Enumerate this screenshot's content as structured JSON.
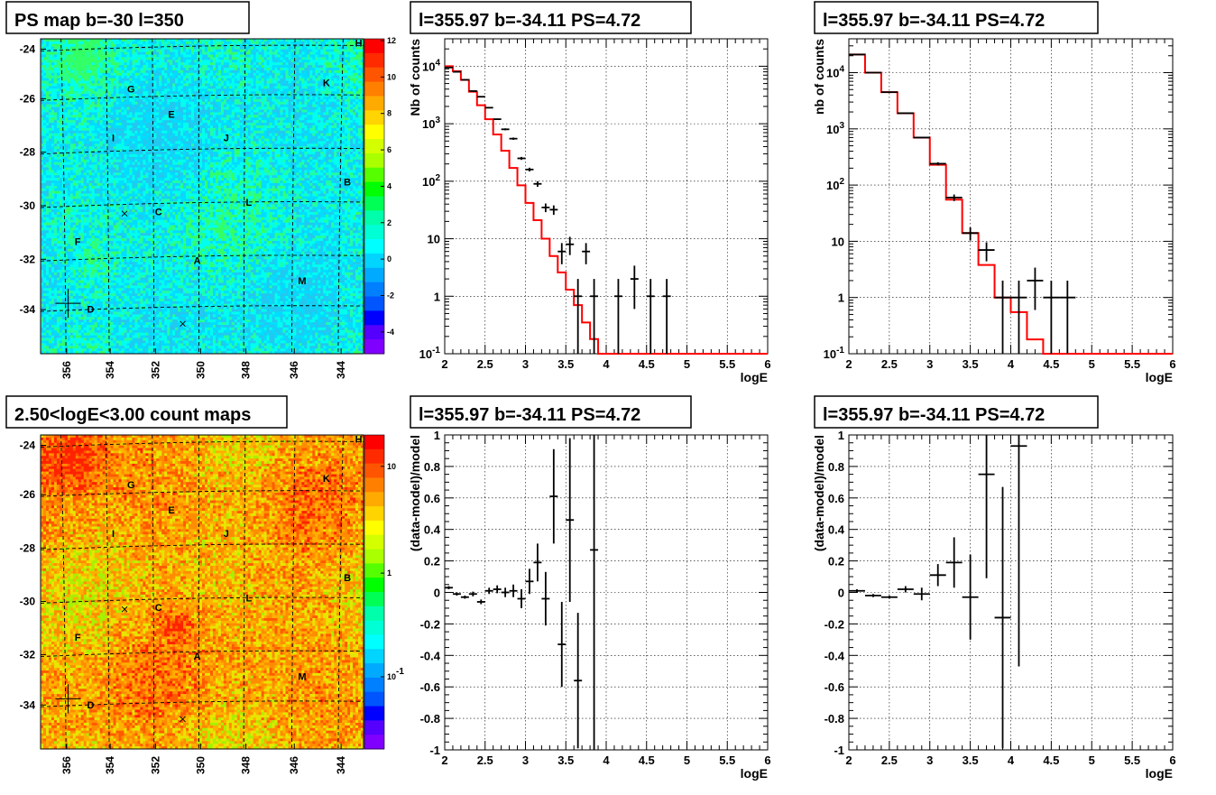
{
  "colors": {
    "hist_model": "#ff0000",
    "data_points": "#000000",
    "grid": "#000000"
  },
  "chart_data": [
    {
      "type": "heatmap",
      "title": "PS map b=-30 l=350",
      "xticks": [
        "356",
        "354",
        "352",
        "350",
        "348",
        "346",
        "344"
      ],
      "yticks": [
        "-24",
        "-26",
        "-28",
        "-30",
        "-32",
        "-34"
      ],
      "zticks": [
        "12",
        "10",
        "8",
        "6",
        "4",
        "2",
        "0",
        "-2",
        "-4"
      ],
      "zrange": [
        -5,
        12
      ],
      "zscale": "linear",
      "labels": [
        "A",
        "B",
        "C",
        "D",
        "E",
        "F",
        "G",
        "H",
        "I",
        "J",
        "K",
        "L",
        "M"
      ],
      "colormap": "rainbow",
      "dominant_color": "cyan"
    },
    {
      "type": "line",
      "title": "l=355.97 b=-34.11 PS=4.72",
      "xlabel": "logE",
      "ylabel": "Nb of counts",
      "xlim": [
        2,
        6
      ],
      "ylim": [
        0.1,
        30000
      ],
      "yscale": "log",
      "xticks": [
        "2",
        "2.5",
        "3",
        "3.5",
        "4",
        "4.5",
        "5",
        "5.5",
        "6"
      ],
      "yticks": [
        "10^4",
        "10^3",
        "10^2",
        "10",
        "1",
        "10^-1"
      ],
      "grid": true,
      "model_bin_width": 0.1,
      "model": [
        10000,
        8200,
        5800,
        3600,
        2100,
        1200,
        650,
        340,
        170,
        85,
        42,
        21,
        10,
        5,
        2.6,
        1.3,
        0.7,
        0.35,
        0.18,
        0.1,
        0.1
      ],
      "data": [
        {
          "x": 2.05,
          "y": 9500,
          "yerr": [
            9400,
            9600
          ]
        },
        {
          "x": 2.15,
          "y": 8000,
          "yerr": [
            7900,
            8100
          ]
        },
        {
          "x": 2.25,
          "y": 5800,
          "yerr": [
            5700,
            5900
          ]
        },
        {
          "x": 2.35,
          "y": 3700,
          "yerr": [
            3640,
            3760
          ]
        },
        {
          "x": 2.45,
          "y": 2950,
          "yerr": [
            2890,
            3010
          ]
        },
        {
          "x": 2.55,
          "y": 1900,
          "yerr": [
            1860,
            1940
          ]
        },
        {
          "x": 2.65,
          "y": 1200,
          "yerr": [
            1170,
            1230
          ]
        },
        {
          "x": 2.75,
          "y": 800,
          "yerr": [
            770,
            830
          ]
        },
        {
          "x": 2.85,
          "y": 550,
          "yerr": [
            525,
            575
          ]
        },
        {
          "x": 2.95,
          "y": 250,
          "yerr": [
            235,
            265
          ]
        },
        {
          "x": 3.05,
          "y": 160,
          "yerr": [
            148,
            172
          ]
        },
        {
          "x": 3.15,
          "y": 90,
          "yerr": [
            80,
            100
          ]
        },
        {
          "x": 3.25,
          "y": 35,
          "yerr": [
            29,
            41
          ]
        },
        {
          "x": 3.35,
          "y": 32,
          "yerr": [
            26,
            38
          ]
        },
        {
          "x": 3.45,
          "y": 6,
          "yerr": [
            3.6,
            8.4
          ]
        },
        {
          "x": 3.55,
          "y": 8,
          "yerr": [
            5.2,
            10.8
          ]
        },
        {
          "x": 3.65,
          "y": 1,
          "yerr": [
            0.1,
            2
          ]
        },
        {
          "x": 3.75,
          "y": 6,
          "yerr": [
            3.6,
            8.4
          ]
        },
        {
          "x": 3.85,
          "y": 1,
          "yerr": [
            0.1,
            2
          ]
        },
        {
          "x": 4.15,
          "y": 1,
          "yerr": [
            0.1,
            2
          ]
        },
        {
          "x": 4.35,
          "y": 2,
          "yerr": [
            0.6,
            3.4
          ]
        },
        {
          "x": 4.55,
          "y": 1,
          "yerr": [
            0.1,
            2
          ]
        },
        {
          "x": 4.75,
          "y": 1,
          "yerr": [
            0.1,
            2
          ]
        }
      ]
    },
    {
      "type": "line",
      "title": "l=355.97 b=-34.11 PS=4.72",
      "xlabel": "logE",
      "ylabel": "nb of counts",
      "xlim": [
        2,
        6
      ],
      "ylim": [
        0.1,
        40000
      ],
      "yscale": "log",
      "xticks": [
        "2",
        "2.5",
        "3",
        "3.5",
        "4",
        "4.5",
        "5",
        "5.5",
        "6"
      ],
      "yticks": [
        "10^4",
        "10^3",
        "10^2",
        "10",
        "1",
        "10^-1"
      ],
      "grid": true,
      "model_bin_width": 0.2,
      "model": [
        21000,
        10000,
        4500,
        1900,
        700,
        230,
        55,
        14,
        3.8,
        1.0,
        0.55,
        0.18,
        0.1,
        0.1,
        0.1,
        0.1,
        0.1,
        0.1,
        0.1,
        0.1
      ],
      "data": [
        {
          "x": 2.1,
          "y": 21000,
          "yerr": [
            20850,
            21150
          ]
        },
        {
          "x": 2.3,
          "y": 10000,
          "yerr": [
            9900,
            10100
          ]
        },
        {
          "x": 2.5,
          "y": 4500,
          "yerr": [
            4430,
            4570
          ]
        },
        {
          "x": 2.7,
          "y": 1900,
          "yerr": [
            1850,
            1950
          ]
        },
        {
          "x": 2.9,
          "y": 700,
          "yerr": [
            675,
            725
          ]
        },
        {
          "x": 3.1,
          "y": 240,
          "yerr": [
            225,
            255
          ]
        },
        {
          "x": 3.3,
          "y": 60,
          "yerr": [
            52,
            68
          ]
        },
        {
          "x": 3.5,
          "y": 14,
          "yerr": [
            10.3,
            17.7
          ]
        },
        {
          "x": 3.7,
          "y": 7,
          "yerr": [
            4.4,
            9.6
          ]
        },
        {
          "x": 3.9,
          "y": 1,
          "yerr": [
            0.1,
            2
          ]
        },
        {
          "x": 4.1,
          "y": 1,
          "yerr": [
            0.1,
            2
          ]
        },
        {
          "x": 4.3,
          "y": 2,
          "yerr": [
            0.6,
            3.4
          ]
        },
        {
          "x": 4.5,
          "y": 1,
          "yerr": [
            0.1,
            2
          ]
        },
        {
          "x": 4.7,
          "y": 1,
          "yerr": [
            0.1,
            2
          ]
        }
      ]
    },
    {
      "type": "heatmap",
      "title": "2.50<logE<3.00 count maps",
      "xticks": [
        "356",
        "354",
        "352",
        "350",
        "348",
        "346",
        "344"
      ],
      "yticks": [
        "-24",
        "-26",
        "-28",
        "-30",
        "-32",
        "-34"
      ],
      "zticks": [
        "10",
        "1",
        "10^-1"
      ],
      "zscale": "log",
      "labels": [
        "A",
        "B",
        "C",
        "D",
        "E",
        "F",
        "G",
        "H",
        "I",
        "J",
        "K",
        "L",
        "M"
      ],
      "colormap": "rainbow",
      "dominant_color": "orange"
    },
    {
      "type": "scatter",
      "title": "l=355.97 b=-34.11 PS=4.72",
      "xlabel": "logE",
      "ylabel": "(data-model)/model",
      "xlim": [
        2,
        6
      ],
      "ylim": [
        -1,
        1
      ],
      "xticks": [
        "2",
        "2.5",
        "3",
        "3.5",
        "4",
        "4.5",
        "5",
        "5.5",
        "6"
      ],
      "yticks": [
        "1",
        "0.8",
        "0.6",
        "0.4",
        "0.2",
        "0",
        "-0.2",
        "-0.4",
        "-0.6",
        "-0.8",
        "-1"
      ],
      "grid": true,
      "data": [
        {
          "x": 2.05,
          "y": 0.03,
          "xerr": 0.05,
          "yerr": 0.01
        },
        {
          "x": 2.15,
          "y": -0.01,
          "xerr": 0.05,
          "yerr": 0.01
        },
        {
          "x": 2.25,
          "y": -0.03,
          "xerr": 0.05,
          "yerr": 0.01
        },
        {
          "x": 2.35,
          "y": -0.01,
          "xerr": 0.05,
          "yerr": 0.015
        },
        {
          "x": 2.45,
          "y": -0.06,
          "xerr": 0.05,
          "yerr": 0.015
        },
        {
          "x": 2.55,
          "y": 0.01,
          "xerr": 0.05,
          "yerr": 0.02
        },
        {
          "x": 2.65,
          "y": 0.02,
          "xerr": 0.05,
          "yerr": 0.025
        },
        {
          "x": 2.75,
          "y": 0.0,
          "xerr": 0.05,
          "yerr": 0.03
        },
        {
          "x": 2.85,
          "y": 0.01,
          "xerr": 0.05,
          "yerr": 0.04
        },
        {
          "x": 2.95,
          "y": -0.04,
          "xerr": 0.05,
          "yerr": 0.06
        },
        {
          "x": 3.05,
          "y": 0.07,
          "xerr": 0.05,
          "yerr": 0.08
        },
        {
          "x": 3.15,
          "y": 0.19,
          "xerr": 0.05,
          "yerr": 0.12
        },
        {
          "x": 3.25,
          "y": -0.04,
          "xerr": 0.05,
          "yerr": 0.17
        },
        {
          "x": 3.35,
          "y": 0.61,
          "xerr": 0.05,
          "yerr": 0.3
        },
        {
          "x": 3.45,
          "y": -0.33,
          "xerr": 0.05,
          "yerr": 0.27
        },
        {
          "x": 3.55,
          "y": 0.46,
          "xerr": 0.05,
          "yerr": 0.52
        },
        {
          "x": 3.65,
          "y": -0.56,
          "xerr": 0.05,
          "yerr": 0.43
        },
        {
          "x": 3.85,
          "y": 0.27,
          "xerr": 0.05,
          "yerr": 1.4
        }
      ]
    },
    {
      "type": "scatter",
      "title": "l=355.97 b=-34.11 PS=4.72",
      "xlabel": "logE",
      "ylabel": "(data-model)/model",
      "xlim": [
        2,
        6
      ],
      "ylim": [
        -1,
        1
      ],
      "xticks": [
        "2",
        "2.5",
        "3",
        "3.5",
        "4",
        "4.5",
        "5",
        "5.5",
        "6"
      ],
      "yticks": [
        "1",
        "0.8",
        "0.6",
        "0.4",
        "0.2",
        "0",
        "-0.2",
        "-0.4",
        "-0.6",
        "-0.8",
        "-1"
      ],
      "grid": true,
      "data": [
        {
          "x": 2.1,
          "y": 0.01,
          "xerr": 0.1,
          "yerr": 0.01
        },
        {
          "x": 2.3,
          "y": -0.02,
          "xerr": 0.1,
          "yerr": 0.01
        },
        {
          "x": 2.5,
          "y": -0.03,
          "xerr": 0.1,
          "yerr": 0.01
        },
        {
          "x": 2.7,
          "y": 0.02,
          "xerr": 0.1,
          "yerr": 0.02
        },
        {
          "x": 2.9,
          "y": -0.01,
          "xerr": 0.1,
          "yerr": 0.04
        },
        {
          "x": 3.1,
          "y": 0.11,
          "xerr": 0.1,
          "yerr": 0.07
        },
        {
          "x": 3.3,
          "y": 0.19,
          "xerr": 0.1,
          "yerr": 0.16
        },
        {
          "x": 3.5,
          "y": -0.03,
          "xerr": 0.1,
          "yerr": 0.27
        },
        {
          "x": 3.7,
          "y": 0.75,
          "xerr": 0.1,
          "yerr": 0.66
        },
        {
          "x": 3.9,
          "y": -0.16,
          "xerr": 0.1,
          "yerr": 0.83
        },
        {
          "x": 4.1,
          "y": 0.93,
          "xerr": 0.1,
          "yerr": 1.4
        }
      ]
    }
  ]
}
